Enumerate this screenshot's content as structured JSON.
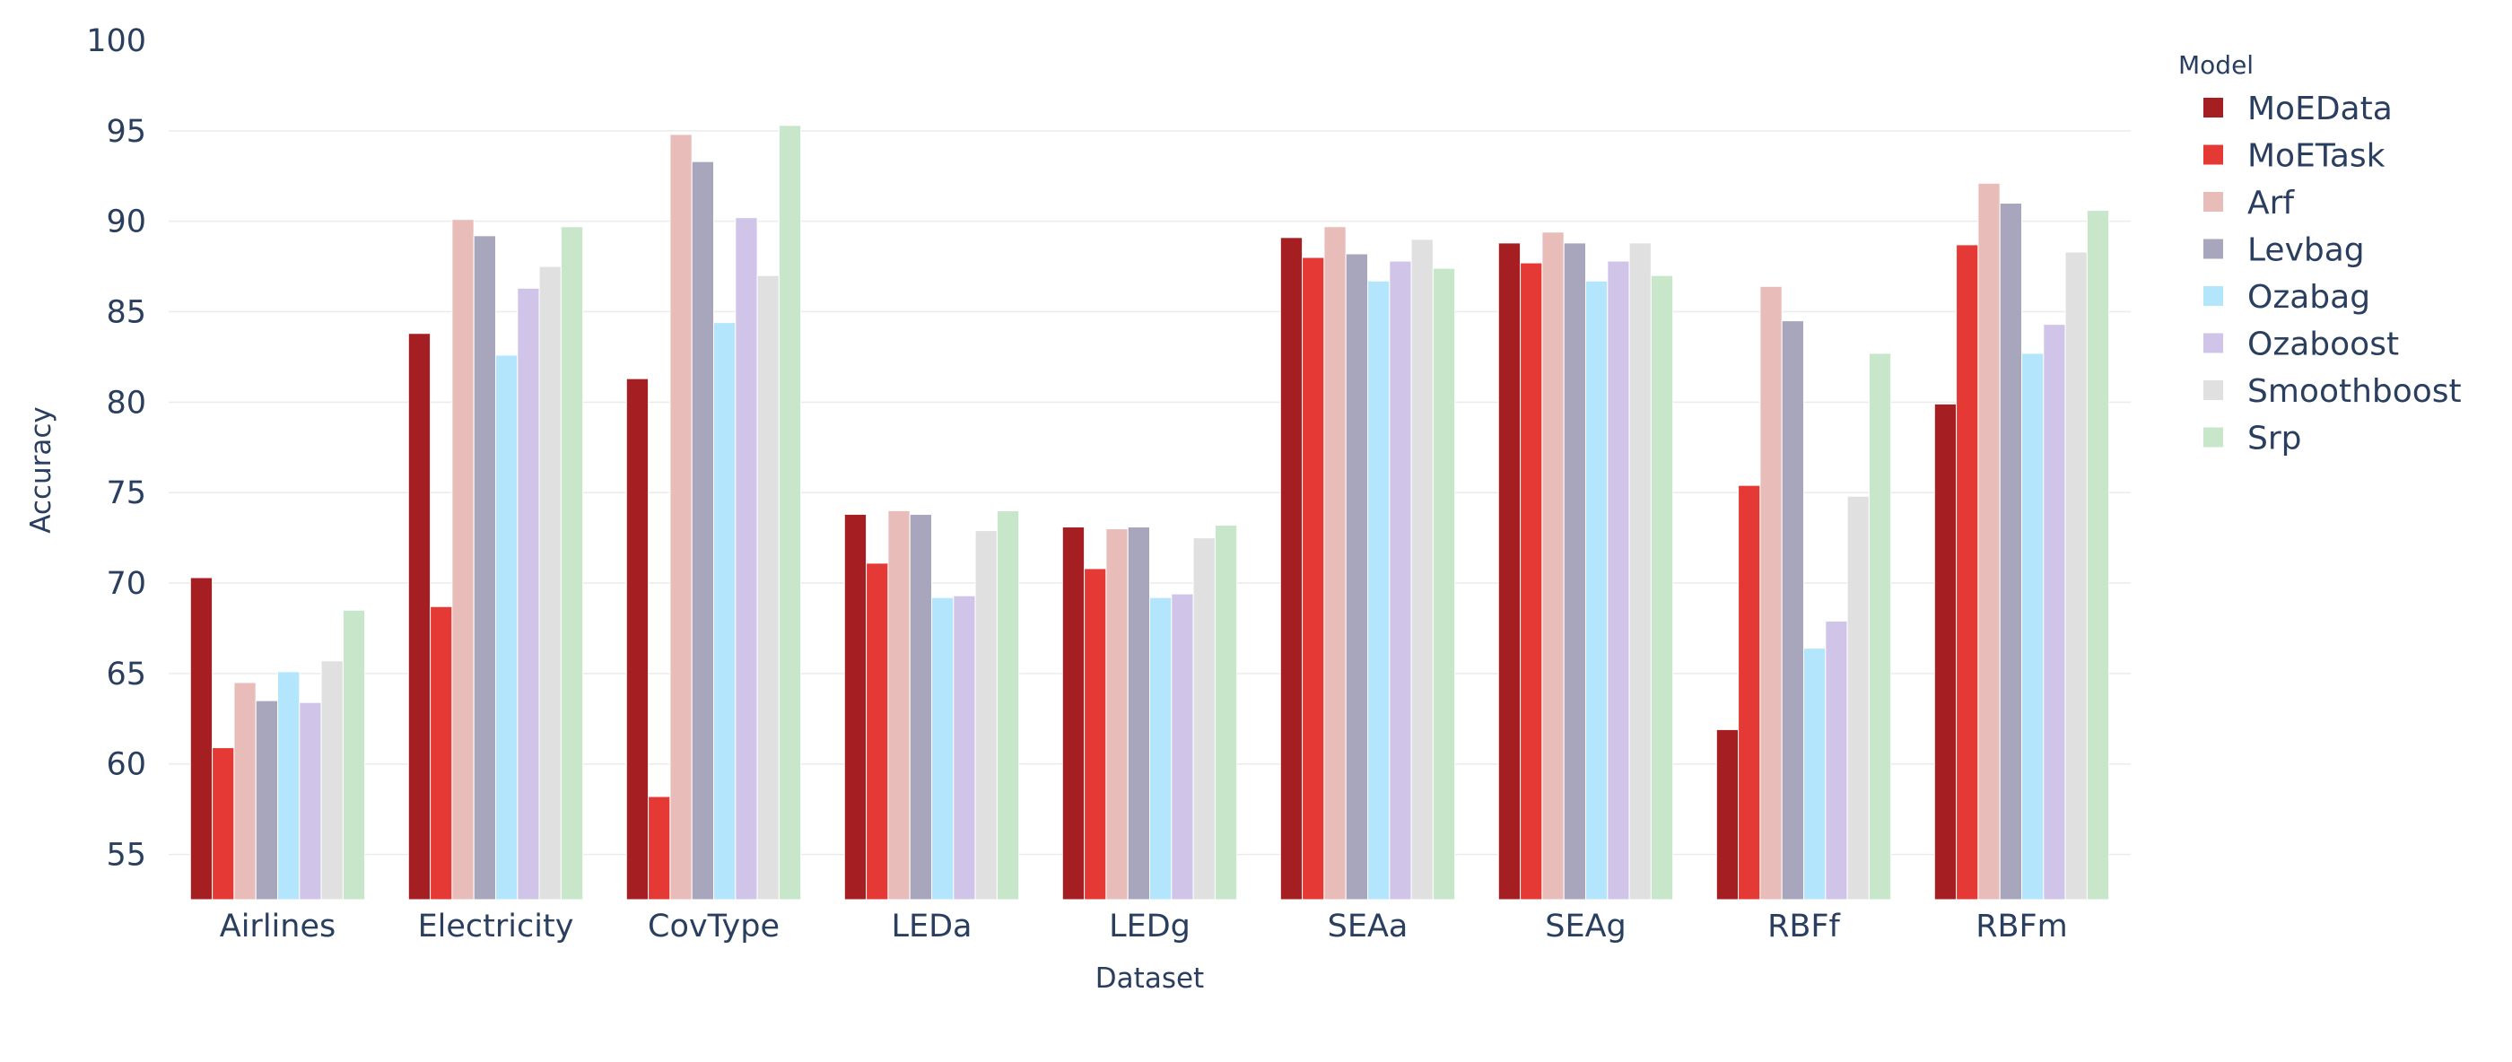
{
  "chart_data": {
    "type": "bar",
    "title": "",
    "xlabel": "Dataset",
    "ylabel": "Accuracy",
    "ylim": [
      52.5,
      100
    ],
    "yticks": [
      55,
      60,
      65,
      70,
      75,
      80,
      85,
      90,
      95,
      100
    ],
    "grid": true,
    "legend_title": "Model",
    "legend_position": "top-right",
    "categories": [
      "Airlines",
      "Electricity",
      "CovType",
      "LEDa",
      "LEDg",
      "SEAa",
      "SEAg",
      "RBFf",
      "RBFm"
    ],
    "series": [
      {
        "name": "MoEData",
        "color": "#a41e22",
        "values": [
          70.3,
          83.8,
          81.3,
          73.8,
          73.1,
          89.1,
          88.8,
          61.9,
          79.9
        ]
      },
      {
        "name": "MoETask",
        "color": "#e53935",
        "values": [
          60.9,
          68.7,
          58.2,
          71.1,
          70.8,
          88.0,
          87.7,
          75.4,
          88.7
        ]
      },
      {
        "name": "Arf",
        "color": "#e8bcb8",
        "values": [
          64.5,
          90.1,
          94.8,
          74.0,
          73.0,
          89.7,
          89.4,
          86.4,
          92.1
        ]
      },
      {
        "name": "Levbag",
        "color": "#a8a6bd",
        "values": [
          63.5,
          89.2,
          93.3,
          73.8,
          73.1,
          88.2,
          88.8,
          84.5,
          91.0
        ]
      },
      {
        "name": "Ozabag",
        "color": "#b3e5fc",
        "values": [
          65.1,
          82.6,
          84.4,
          69.2,
          69.2,
          86.7,
          86.7,
          66.4,
          82.7
        ]
      },
      {
        "name": "Ozaboost",
        "color": "#d1c4e9",
        "values": [
          63.4,
          86.3,
          90.2,
          69.3,
          69.4,
          87.8,
          87.8,
          67.9,
          84.3
        ]
      },
      {
        "name": "Smoothboost",
        "color": "#e0e0e0",
        "values": [
          65.7,
          87.5,
          87.0,
          72.9,
          72.5,
          89.0,
          88.8,
          74.8,
          88.3
        ]
      },
      {
        "name": "Srp",
        "color": "#c8e6c9",
        "values": [
          68.5,
          89.7,
          95.3,
          74.0,
          73.2,
          87.4,
          87.0,
          82.7,
          90.6
        ]
      }
    ]
  }
}
